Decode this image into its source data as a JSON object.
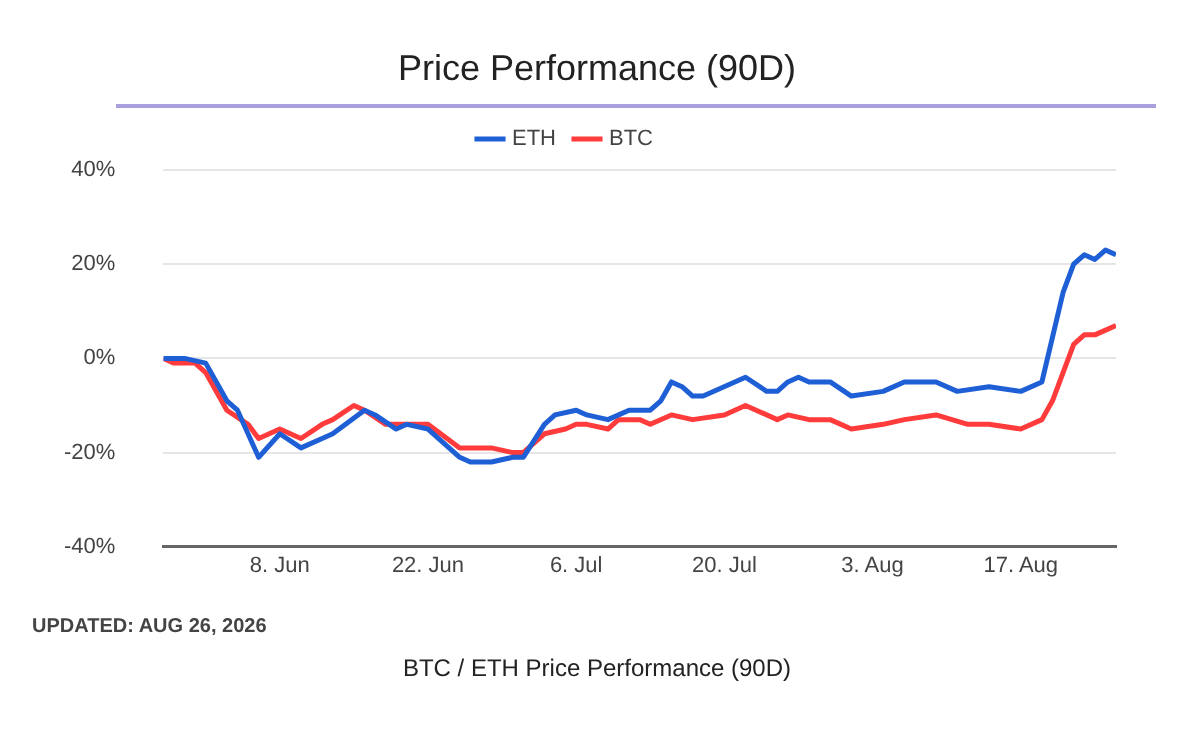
{
  "chart_data": {
    "type": "line",
    "title": "Price Performance (90D)",
    "annotations": [
      "UPDATED: AUG 26, 2026",
      "BTC / ETH Price Performance (90D)"
    ],
    "xlim": [
      "2026-05-28",
      "2026-08-26"
    ],
    "xticks": [
      {
        "value": "2026-06-08",
        "label": "8. Jun"
      },
      {
        "value": "2026-06-22",
        "label": "22. Jun"
      },
      {
        "value": "2026-07-06",
        "label": "6. Jul"
      },
      {
        "value": "2026-07-20",
        "label": "20. Jul"
      },
      {
        "value": "2026-08-03",
        "label": "3. Aug"
      },
      {
        "value": "2026-08-17",
        "label": "17. Aug"
      }
    ],
    "ylim": [
      -40,
      40
    ],
    "yticks": [
      {
        "value": -40,
        "label": "-40%"
      },
      {
        "value": -20,
        "label": "-20%"
      },
      {
        "value": 0,
        "label": "0%"
      },
      {
        "value": 20,
        "label": "20%"
      },
      {
        "value": 40,
        "label": "40%"
      }
    ],
    "grid": "y",
    "legend": "top",
    "marker": "none",
    "line_style": "solid",
    "series": [
      {
        "name": "ETH",
        "color": "#1f5fd6",
        "x": [
          "2026-05-28",
          "2026-05-30",
          "2026-06-01",
          "2026-06-03",
          "2026-06-04",
          "2026-06-06",
          "2026-06-08",
          "2026-06-10",
          "2026-06-12",
          "2026-06-13",
          "2026-06-16",
          "2026-06-17",
          "2026-06-19",
          "2026-06-20",
          "2026-06-22",
          "2026-06-25",
          "2026-06-26",
          "2026-06-28",
          "2026-06-30",
          "2026-07-01",
          "2026-07-03",
          "2026-07-04",
          "2026-07-06",
          "2026-07-07",
          "2026-07-09",
          "2026-07-11",
          "2026-07-13",
          "2026-07-14",
          "2026-07-15",
          "2026-07-16",
          "2026-07-17",
          "2026-07-18",
          "2026-07-22",
          "2026-07-24",
          "2026-07-25",
          "2026-07-26",
          "2026-07-27",
          "2026-07-28",
          "2026-07-30",
          "2026-08-01",
          "2026-08-04",
          "2026-08-06",
          "2026-08-09",
          "2026-08-11",
          "2026-08-14",
          "2026-08-17",
          "2026-08-19",
          "2026-08-21",
          "2026-08-22",
          "2026-08-23",
          "2026-08-24",
          "2026-08-25",
          "2026-08-26"
        ],
        "values": [
          0,
          0,
          -1,
          -9,
          -11,
          -21,
          -16,
          -19,
          -17,
          -16,
          -11,
          -12,
          -15,
          -14,
          -15,
          -21,
          -22,
          -22,
          -21,
          -21,
          -14,
          -12,
          -11,
          -12,
          -13,
          -11,
          -11,
          -9,
          -5,
          -6,
          -8,
          -8,
          -4,
          -7,
          -7,
          -5,
          -4,
          -5,
          -5,
          -8,
          -7,
          -5,
          -5,
          -7,
          -6,
          -7,
          -5,
          14,
          20,
          22,
          21,
          23,
          22
        ]
      },
      {
        "name": "BTC",
        "color": "#ff3b3b",
        "x": [
          "2026-05-28",
          "2026-05-29",
          "2026-05-31",
          "2026-06-01",
          "2026-06-03",
          "2026-06-05",
          "2026-06-06",
          "2026-06-08",
          "2026-06-10",
          "2026-06-12",
          "2026-06-13",
          "2026-06-15",
          "2026-06-16",
          "2026-06-18",
          "2026-06-20",
          "2026-06-22",
          "2026-06-25",
          "2026-06-28",
          "2026-06-30",
          "2026-07-01",
          "2026-07-03",
          "2026-07-05",
          "2026-07-06",
          "2026-07-07",
          "2026-07-09",
          "2026-07-10",
          "2026-07-12",
          "2026-07-13",
          "2026-07-15",
          "2026-07-17",
          "2026-07-20",
          "2026-07-22",
          "2026-07-25",
          "2026-07-26",
          "2026-07-28",
          "2026-07-30",
          "2026-08-01",
          "2026-08-04",
          "2026-08-06",
          "2026-08-09",
          "2026-08-12",
          "2026-08-14",
          "2026-08-17",
          "2026-08-19",
          "2026-08-20",
          "2026-08-22",
          "2026-08-23",
          "2026-08-24",
          "2026-08-26"
        ],
        "values": [
          0,
          -1,
          -1,
          -3,
          -11,
          -14,
          -17,
          -15,
          -17,
          -14,
          -13,
          -10,
          -11,
          -14,
          -14,
          -14,
          -19,
          -19,
          -20,
          -20,
          -16,
          -15,
          -14,
          -14,
          -15,
          -13,
          -13,
          -14,
          -12,
          -13,
          -12,
          -10,
          -13,
          -12,
          -13,
          -13,
          -15,
          -14,
          -13,
          -12,
          -14,
          -14,
          -15,
          -13,
          -9,
          3,
          5,
          5,
          7
        ]
      }
    ]
  }
}
